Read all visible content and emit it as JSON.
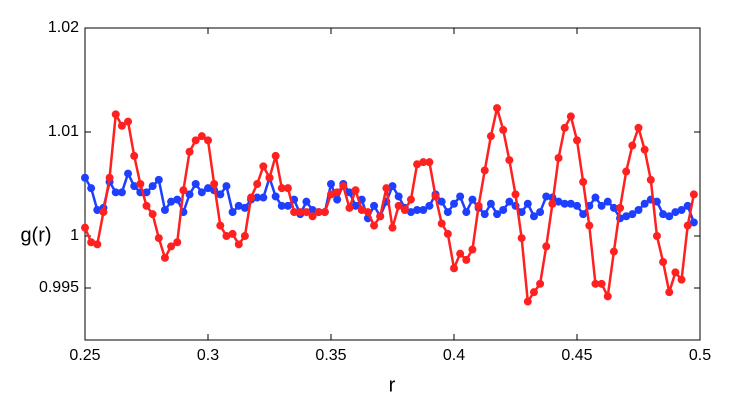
{
  "chart_data": {
    "type": "line",
    "xlabel": "r",
    "ylabel": "g(r)",
    "xlim": [
      0.25,
      0.5
    ],
    "xticks": [
      0.25,
      0.3,
      0.35,
      0.4,
      0.45,
      0.5
    ],
    "ylim": [
      0.99,
      1.02
    ],
    "yticks": [
      0.995,
      1,
      1.01,
      1.02
    ],
    "x": [
      0.25,
      0.2525,
      0.255,
      0.2575,
      0.26,
      0.2625,
      0.265,
      0.2675,
      0.27,
      0.2725,
      0.275,
      0.2775,
      0.28,
      0.2825,
      0.285,
      0.2875,
      0.29,
      0.2925,
      0.295,
      0.2975,
      0.3,
      0.3025,
      0.305,
      0.3075,
      0.31,
      0.3125,
      0.315,
      0.3175,
      0.32,
      0.3225,
      0.325,
      0.3275,
      0.33,
      0.3325,
      0.335,
      0.3375,
      0.34,
      0.3425,
      0.345,
      0.3475,
      0.35,
      0.3525,
      0.355,
      0.3575,
      0.36,
      0.3625,
      0.365,
      0.3675,
      0.37,
      0.3725,
      0.375,
      0.3775,
      0.38,
      0.3825,
      0.385,
      0.3875,
      0.39,
      0.3925,
      0.395,
      0.3975,
      0.4,
      0.4025,
      0.405,
      0.4075,
      0.41,
      0.4125,
      0.415,
      0.4175,
      0.42,
      0.4225,
      0.425,
      0.4275,
      0.43,
      0.4325,
      0.435,
      0.4375,
      0.44,
      0.4425,
      0.445,
      0.4475,
      0.45,
      0.4525,
      0.455,
      0.4575,
      0.46,
      0.4625,
      0.465,
      0.4675,
      0.47,
      0.4725,
      0.475,
      0.4775,
      0.48,
      0.4825,
      0.485,
      0.4875,
      0.49,
      0.4925,
      0.495,
      0.4975
    ],
    "series": [
      {
        "color": "#1f3fff",
        "values": [
          1.0056,
          1.0046,
          1.0025,
          1.0027,
          1.0052,
          1.0042,
          1.0042,
          1.006,
          1.0048,
          1.0042,
          1.0042,
          1.0048,
          1.0054,
          1.0025,
          1.0033,
          1.0035,
          1.0023,
          1.004,
          1.005,
          1.0042,
          1.0046,
          1.0044,
          1.004,
          1.0048,
          1.0023,
          1.0029,
          1.0027,
          1.0035,
          1.0037,
          1.0037,
          1.0056,
          1.0038,
          1.0029,
          1.0029,
          1.0035,
          1.0021,
          1.0033,
          1.0025,
          1.0023,
          1.0023,
          1.005,
          1.0035,
          1.005,
          1.0042,
          1.0029,
          1.0035,
          1.0017,
          1.0029,
          1.0019,
          1.0033,
          1.0048,
          1.0038,
          1.0027,
          1.0023,
          1.0025,
          1.0025,
          1.0029,
          1.004,
          1.0033,
          1.0023,
          1.0031,
          1.0038,
          1.0023,
          1.0035,
          1.0027,
          1.0021,
          1.0031,
          1.0021,
          1.0025,
          1.0033,
          1.0029,
          1.0023,
          1.0031,
          1.0019,
          1.0023,
          1.0038,
          1.0037,
          1.0033,
          1.0031,
          1.0031,
          1.0029,
          1.0021,
          1.0029,
          1.0037,
          1.0029,
          1.0033,
          1.0027,
          1.0017,
          1.0019,
          1.0021,
          1.0025,
          1.0031,
          1.0035,
          1.0033,
          1.0021,
          1.0019,
          1.0023,
          1.0025,
          1.0029,
          1.0013
        ]
      },
      {
        "color": "#ff2020",
        "values": [
          1.0008,
          0.9994,
          0.9992,
          1.0023,
          1.0056,
          1.0117,
          1.0106,
          1.011,
          1.0077,
          1.005,
          1.0029,
          1.0021,
          0.9998,
          0.9979,
          0.999,
          0.9994,
          1.0044,
          1.0081,
          1.0092,
          1.0096,
          1.0092,
          1.005,
          1.001,
          1.0,
          1.0002,
          0.9992,
          1.0,
          1.0037,
          1.005,
          1.0067,
          1.0056,
          1.0077,
          1.0046,
          1.0046,
          1.0023,
          1.0023,
          1.0023,
          1.0019,
          1.0023,
          1.0023,
          1.004,
          1.0042,
          1.0048,
          1.0027,
          1.0044,
          1.0025,
          1.0023,
          1.001,
          1.0019,
          1.0046,
          1.0008,
          1.0029,
          1.0025,
          1.0035,
          1.0069,
          1.0071,
          1.0071,
          1.0038,
          1.0012,
          1.0002,
          0.9969,
          0.9983,
          0.9977,
          0.9987,
          1.0029,
          1.0063,
          1.0096,
          1.0123,
          1.0102,
          1.0073,
          1.004,
          0.9998,
          0.9937,
          0.9946,
          0.9954,
          0.999,
          1.0031,
          1.0075,
          1.0104,
          1.0115,
          1.0092,
          1.0052,
          1.001,
          0.9954,
          0.9954,
          0.9942,
          0.9985,
          1.0027,
          1.0062,
          1.0087,
          1.0104,
          1.0083,
          1.0054,
          1.0,
          0.9975,
          0.9946,
          0.9965,
          0.9958,
          1.001,
          1.004
        ]
      }
    ]
  }
}
